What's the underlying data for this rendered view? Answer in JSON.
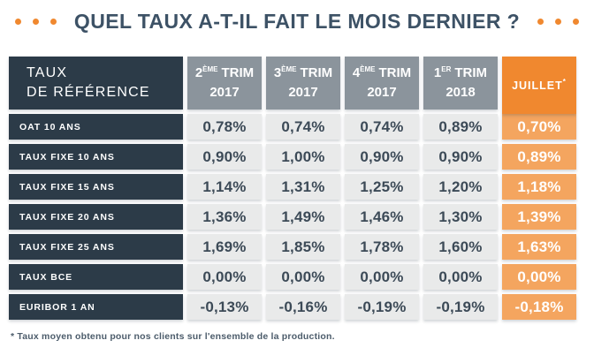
{
  "title": "QUEL TAUX A-T-IL FAIT LE MOIS DERNIER ?",
  "colors": {
    "dark-slate": "#2c3b48",
    "header-gray": "#8b949c",
    "cell-gray": "#e9eaea",
    "orange-deep": "#f0882f",
    "orange-light": "#f4a55f",
    "title-text": "#3d5266",
    "value-text": "#3c4a57",
    "footnote-text": "#4c5c6b"
  },
  "table": {
    "corner": {
      "line1": "TAUX",
      "line2": "DE RÉFÉRENCE"
    },
    "columns": [
      {
        "num": "2",
        "sup": "ÈME",
        "word": "TRIM",
        "year": "2017"
      },
      {
        "num": "3",
        "sup": "ÈME",
        "word": "TRIM",
        "year": "2017"
      },
      {
        "num": "4",
        "sup": "ÈME",
        "word": "TRIM",
        "year": "2017"
      },
      {
        "num": "1",
        "sup": "ER",
        "word": "TRIM",
        "year": "2018"
      }
    ],
    "juillet": {
      "label": "JUILLET",
      "mark": "*"
    },
    "rows": [
      {
        "label": "OAT 10 ANS",
        "values": [
          "0,78%",
          "0,74%",
          "0,74%",
          "0,89%",
          "0,70%"
        ]
      },
      {
        "label": "TAUX FIXE 10 ANS",
        "values": [
          "0,90%",
          "1,00%",
          "0,90%",
          "0,90%",
          "0,89%"
        ]
      },
      {
        "label": "TAUX FIXE 15 ANS",
        "values": [
          "1,14%",
          "1,31%",
          "1,25%",
          "1,20%",
          "1,18%"
        ]
      },
      {
        "label": "TAUX FIXE 20 ANS",
        "values": [
          "1,36%",
          "1,49%",
          "1,46%",
          "1,30%",
          "1,39%"
        ]
      },
      {
        "label": "TAUX FIXE 25 ANS",
        "values": [
          "1,69%",
          "1,85%",
          "1,78%",
          "1,60%",
          "1,63%"
        ]
      },
      {
        "label": "TAUX BCE",
        "values": [
          "0,00%",
          "0,00%",
          "0,00%",
          "0,00%",
          "0,00%"
        ]
      },
      {
        "label": "EURIBOR 1 AN",
        "values": [
          "-0,13%",
          "-0,16%",
          "-0,19%",
          "-0,19%",
          "-0,18%"
        ]
      }
    ]
  },
  "footnote": "* Taux moyen obtenu pour nos clients sur l'ensemble de la production.",
  "chart_data": {
    "type": "table",
    "title": "QUEL TAUX A-T-IL FAIT LE MOIS DERNIER ?",
    "columns": [
      "TAUX DE RÉFÉRENCE",
      "2ème trim 2017",
      "3ème trim 2017",
      "4ème trim 2017",
      "1er trim 2018",
      "Juillet*"
    ],
    "rows": [
      [
        "OAT 10 ANS",
        "0,78%",
        "0,74%",
        "0,74%",
        "0,89%",
        "0,70%"
      ],
      [
        "TAUX FIXE 10 ANS",
        "0,90%",
        "1,00%",
        "0,90%",
        "0,90%",
        "0,89%"
      ],
      [
        "TAUX FIXE 15 ANS",
        "1,14%",
        "1,31%",
        "1,25%",
        "1,20%",
        "1,18%"
      ],
      [
        "TAUX FIXE 20 ANS",
        "1,36%",
        "1,49%",
        "1,46%",
        "1,30%",
        "1,39%"
      ],
      [
        "TAUX FIXE 25 ANS",
        "1,69%",
        "1,85%",
        "1,78%",
        "1,60%",
        "1,63%"
      ],
      [
        "TAUX BCE",
        "0,00%",
        "0,00%",
        "0,00%",
        "0,00%",
        "0,00%"
      ],
      [
        "EURIBOR 1 AN",
        "-0,13%",
        "-0,16%",
        "-0,19%",
        "-0,19%",
        "-0,18%"
      ]
    ],
    "footnote": "* Taux moyen obtenu pour nos clients sur l'ensemble de la production.",
    "layout": {
      "header_style": "dark-slate + gray columns + orange highlight last column",
      "grid": "off"
    }
  }
}
